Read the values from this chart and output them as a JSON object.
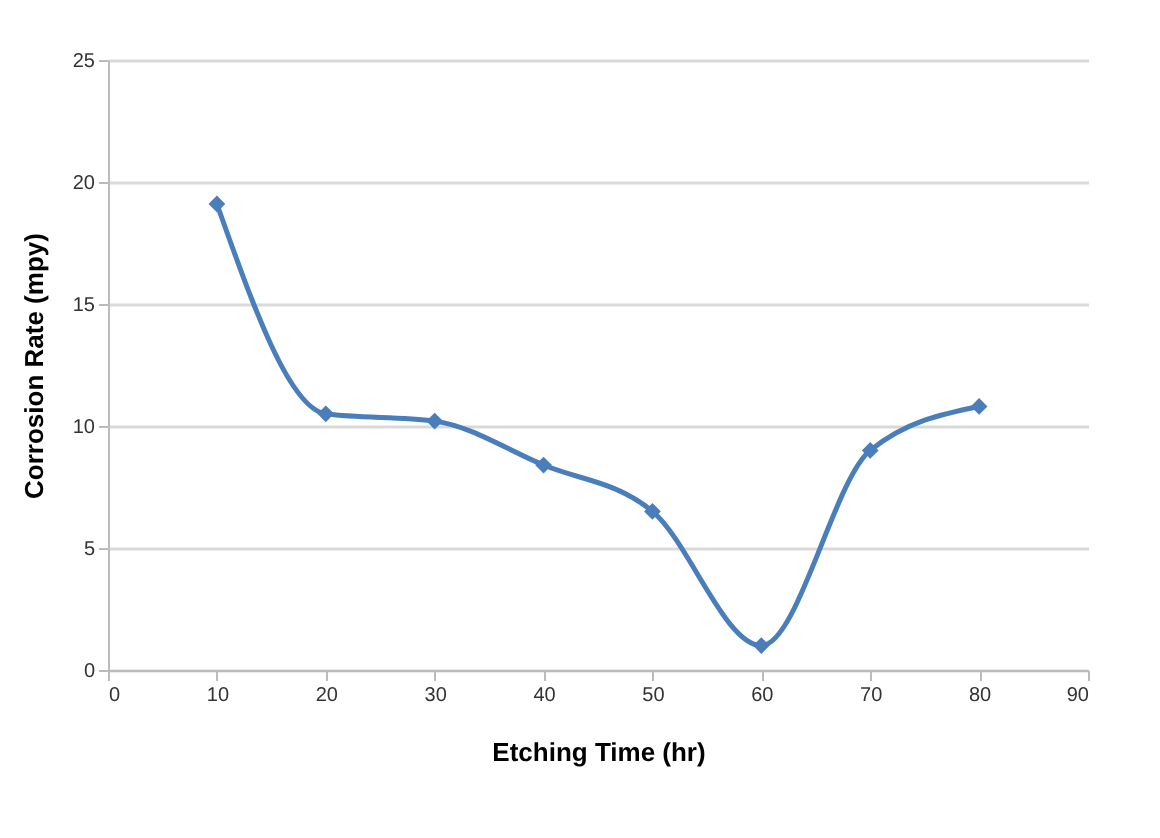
{
  "chart_data": {
    "type": "line",
    "xlabel": "Etching Time (hr)",
    "ylabel": "Corrosion Rate (mpy)",
    "x": [
      10,
      20,
      30,
      40,
      50,
      60,
      70,
      80
    ],
    "series": [
      {
        "color": "#4a7ebb",
        "values": [
          19.1,
          10.5,
          10.2,
          8.4,
          6.5,
          1.0,
          9.0,
          10.8
        ]
      }
    ],
    "xlim": [
      0,
      90
    ],
    "xticks": [
      0,
      10,
      20,
      30,
      40,
      50,
      60,
      70,
      80,
      90
    ],
    "ylim": [
      0,
      25
    ],
    "yticks": [
      0,
      5,
      10,
      15,
      20,
      25
    ],
    "grid": "y",
    "marker": "diamond",
    "line_style": "solid",
    "legend": false
  }
}
